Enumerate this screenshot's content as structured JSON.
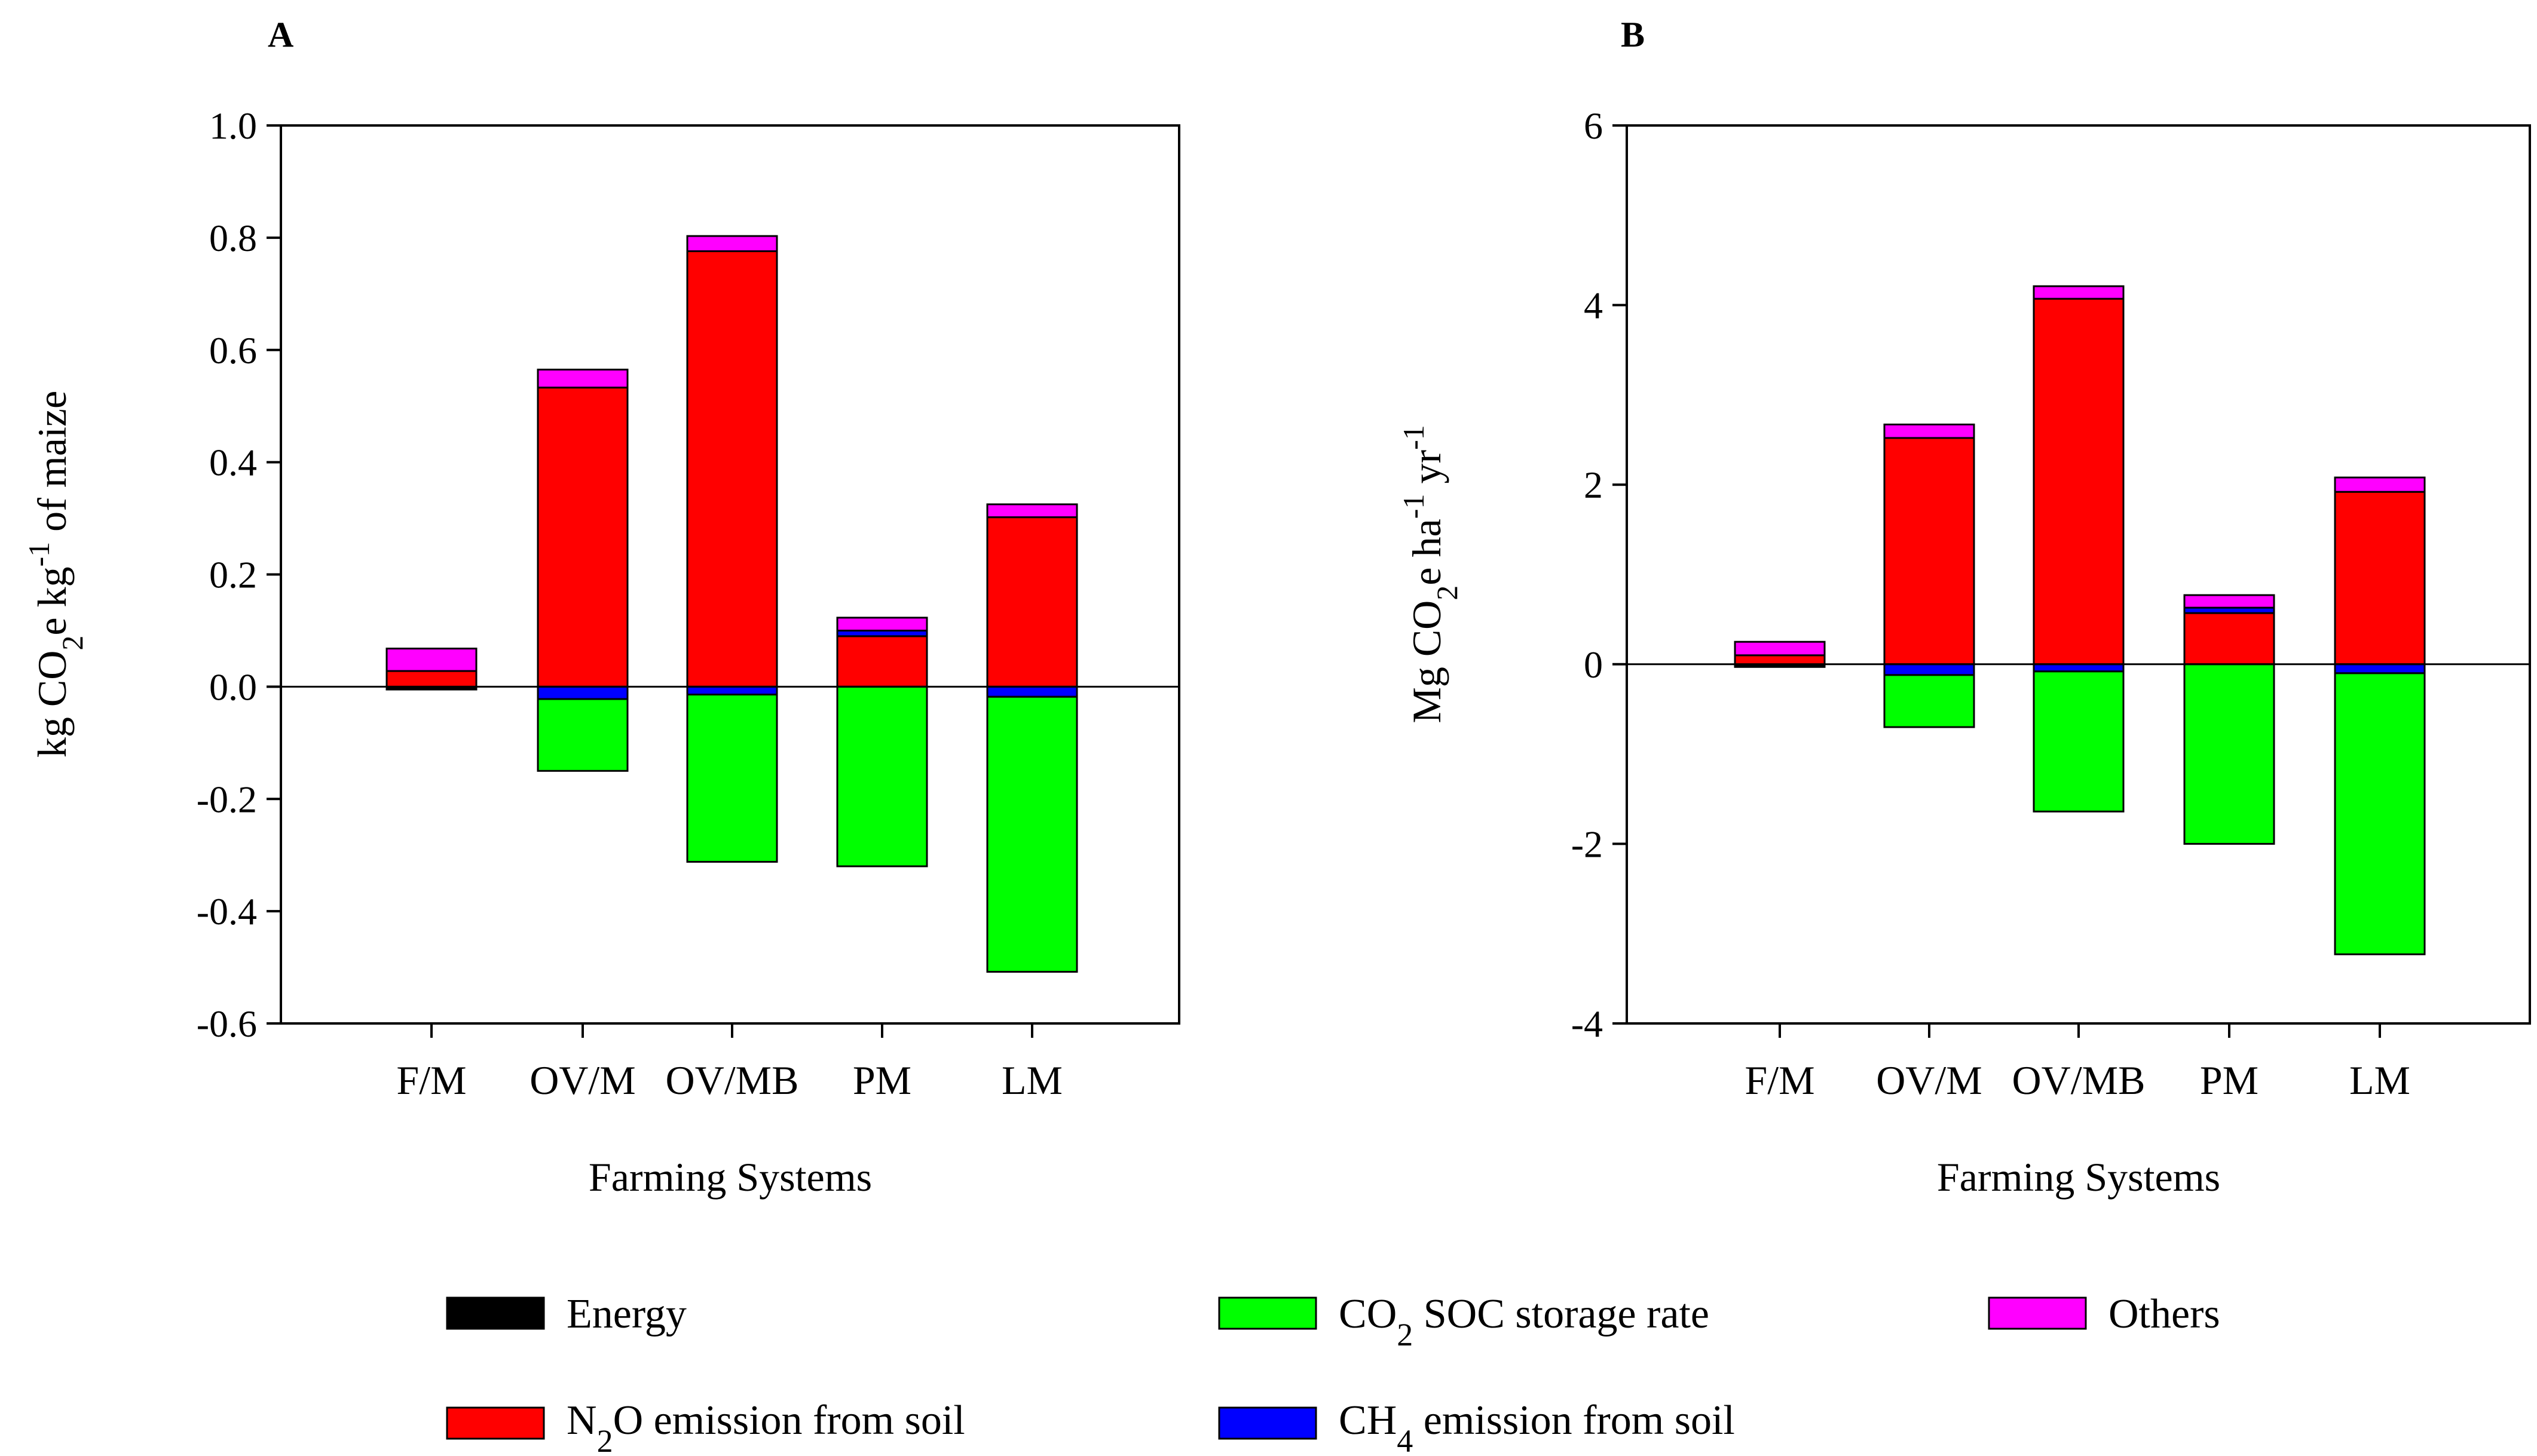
{
  "legend": {
    "energy": "Energy",
    "co2": {
      "main": "CO",
      "sub": "2",
      "rest": " SOC storage rate"
    },
    "others": "Others",
    "n2o": {
      "main": "N",
      "sub": "2",
      "rest": "O emission from soil"
    },
    "ch4": {
      "main": "CH",
      "sub": "4",
      "rest": " emission from soil"
    }
  },
  "colors": {
    "Energy": "#000000",
    "N2O emission from soil": "#ff0000",
    "CO2 SOC storage rate": "#00ff00",
    "CH4 emission from soil": "#0000ff",
    "Others": "#ff00ff"
  },
  "chart_data": [
    {
      "panel": "A",
      "type": "bar",
      "stacked": true,
      "categories": [
        "F/M",
        "OV/M",
        "OV/MB",
        "PM",
        "LM"
      ],
      "xlabel": "Farming Systems",
      "ylabel": {
        "p1": "kg CO",
        "sub": "2",
        "p2": "e kg",
        "sup": "-1",
        "p3": " of maize"
      },
      "ylim": [
        -0.6,
        1.0
      ],
      "yticks": [
        1.0,
        0.8,
        0.6,
        0.4,
        0.2,
        0.0,
        -0.2,
        -0.4,
        -0.6
      ],
      "ytick_labels": [
        "1.0",
        "0.8",
        "0.6",
        "0.4",
        "0.2",
        "0.0",
        "-0.2",
        "-0.4",
        "-0.6"
      ],
      "series": [
        {
          "name": "Energy",
          "values": [
            -0.005,
            0.0,
            0.0,
            0.0,
            0.0
          ]
        },
        {
          "name": "N2O emission from soil",
          "values": [
            0.028,
            0.533,
            0.776,
            0.09,
            0.302
          ]
        },
        {
          "name": "CH4 emission from soil",
          "values": [
            0.0,
            -0.022,
            -0.014,
            0.01,
            -0.018
          ]
        },
        {
          "name": "CO2 SOC storage rate",
          "values": [
            0.0,
            -0.128,
            -0.298,
            -0.32,
            -0.49
          ]
        },
        {
          "name": "Others",
          "values": [
            0.04,
            0.032,
            0.027,
            0.023,
            0.023
          ]
        }
      ]
    },
    {
      "panel": "B",
      "type": "bar",
      "stacked": true,
      "categories": [
        "F/M",
        "OV/M",
        "OV/MB",
        "PM",
        "LM"
      ],
      "xlabel": "Farming Systems",
      "ylabel": {
        "p1": "Mg CO",
        "sub": "2",
        "p2": "e ha",
        "sup": "-1",
        "p3": " yr",
        "sup2": "-1"
      },
      "ylim": [
        -4,
        6
      ],
      "yticks": [
        6,
        4,
        2,
        0,
        -2,
        -4
      ],
      "ytick_labels": [
        "6",
        "4",
        "2",
        "0",
        "-2",
        "-4"
      ],
      "series": [
        {
          "name": "Energy",
          "values": [
            -0.03,
            0.0,
            0.0,
            0.0,
            0.0
          ]
        },
        {
          "name": "N2O emission from soil",
          "values": [
            0.1,
            2.52,
            4.07,
            0.57,
            1.92
          ]
        },
        {
          "name": "CH4 emission from soil",
          "values": [
            0.0,
            -0.12,
            -0.08,
            0.06,
            -0.1
          ]
        },
        {
          "name": "CO2 SOC storage rate",
          "values": [
            0.0,
            -0.58,
            -1.56,
            -2.0,
            -3.13
          ]
        },
        {
          "name": "Others",
          "values": [
            0.15,
            0.15,
            0.14,
            0.14,
            0.16
          ]
        }
      ]
    }
  ]
}
